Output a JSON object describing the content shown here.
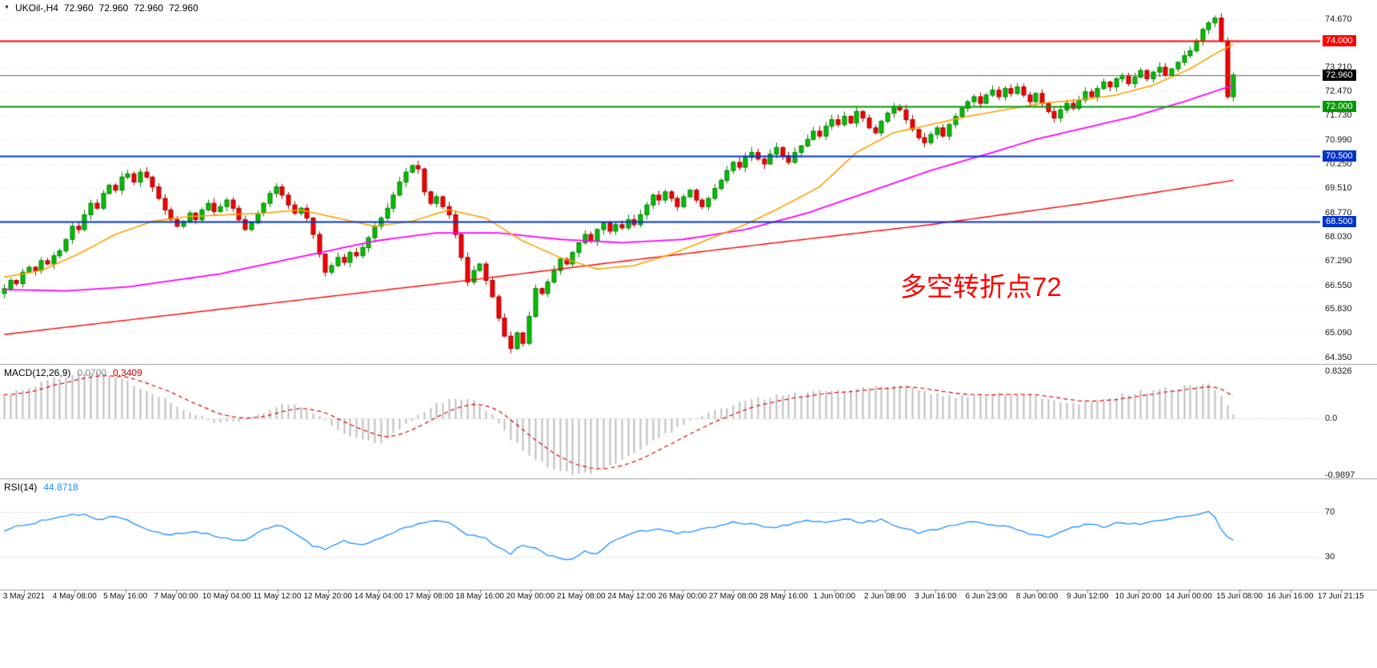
{
  "header": {
    "marker": "▼",
    "symbol_period": "UKOil-,H4",
    "open": "72.960",
    "high": "72.960",
    "low": "72.960",
    "close": "72.960"
  },
  "indicators": {
    "macd": {
      "name": "MACD(12,26,9)",
      "main": "0.0700",
      "signal": "0.3409"
    },
    "rsi": {
      "name": "RSI(14)",
      "value": "44.8718"
    }
  },
  "annotation": {
    "text": "多空转折点72",
    "color": "#ff0000"
  },
  "chart_data": [
    {
      "type": "candlestick",
      "title": "UKOil-,H4",
      "ohlc_current": {
        "open": 72.96,
        "high": 72.96,
        "low": 72.96,
        "close": 72.96
      },
      "y_range": [
        64.15,
        75.25
      ],
      "y_axis_ticks": [
        74.67,
        73.21,
        72.47,
        71.73,
        70.99,
        70.25,
        69.51,
        68.77,
        68.03,
        67.29,
        66.55,
        65.83,
        65.09,
        64.35
      ],
      "x_time_labels": [
        "3 May 2021",
        "4 May 08:00",
        "5 May 16:00",
        "7 May 00:00",
        "10 May 04:00",
        "11 May 12:00",
        "12 May 20:00",
        "14 May 04:00",
        "17 May 08:00",
        "18 May 16:00",
        "20 May 00:00",
        "21 May 08:00",
        "24 May 12:00",
        "26 May 00:00",
        "27 May 08:00",
        "28 May 16:00",
        "1 Jun 00:00",
        "2 Jun 08:00",
        "3 Jun 16:00",
        "6 Jun 23:00",
        "8 Jun 00:00",
        "9 Jun 12:00",
        "10 Jun 20:00",
        "14 Jun 00:00",
        "15 Jun 08:00",
        "16 Jun 16:00",
        "17 Jun 21:15"
      ],
      "up_color": "#00c000",
      "up_border": "#067d06",
      "down_color": "#f40000",
      "down_border": "#a60000",
      "first_open": 66.3,
      "closes": [
        66.45,
        66.7,
        66.6,
        66.95,
        67.1,
        67.0,
        67.3,
        67.2,
        67.45,
        67.6,
        67.95,
        68.35,
        68.25,
        68.7,
        69.05,
        68.9,
        69.35,
        69.6,
        69.45,
        69.85,
        69.95,
        69.7,
        70.0,
        69.85,
        69.55,
        69.2,
        68.85,
        68.55,
        68.35,
        68.5,
        68.75,
        68.55,
        68.85,
        69.05,
        68.8,
        68.95,
        69.15,
        68.9,
        68.55,
        68.25,
        68.45,
        68.75,
        69.05,
        69.35,
        69.55,
        69.3,
        69.0,
        68.75,
        68.9,
        68.6,
        68.1,
        67.5,
        66.95,
        67.15,
        67.4,
        67.25,
        67.55,
        67.45,
        67.7,
        68.0,
        68.35,
        68.6,
        68.9,
        69.3,
        69.7,
        70.0,
        70.2,
        70.1,
        69.4,
        69.05,
        69.25,
        68.95,
        68.7,
        68.1,
        67.4,
        66.65,
        67.0,
        67.2,
        66.7,
        66.2,
        65.55,
        65.0,
        64.62,
        65.1,
        64.78,
        65.6,
        66.45,
        66.3,
        66.65,
        67.0,
        67.35,
        67.2,
        67.55,
        67.85,
        68.1,
        67.9,
        68.25,
        68.45,
        68.2,
        68.4,
        68.3,
        68.55,
        68.4,
        68.7,
        69.0,
        69.3,
        69.15,
        69.4,
        69.2,
        68.95,
        69.25,
        69.45,
        69.15,
        68.95,
        69.2,
        69.5,
        69.75,
        70.05,
        70.3,
        70.15,
        70.45,
        70.6,
        70.4,
        70.25,
        70.55,
        70.75,
        70.5,
        70.3,
        70.6,
        70.8,
        71.0,
        71.25,
        71.1,
        71.4,
        71.6,
        71.45,
        71.7,
        71.5,
        71.85,
        71.65,
        71.35,
        71.2,
        71.55,
        71.8,
        72.0,
        71.9,
        71.6,
        71.3,
        71.05,
        70.9,
        71.15,
        71.35,
        71.1,
        71.45,
        71.7,
        71.95,
        72.15,
        72.3,
        72.1,
        72.35,
        72.5,
        72.3,
        72.55,
        72.4,
        72.6,
        72.35,
        72.15,
        72.4,
        72.1,
        71.85,
        71.65,
        71.9,
        72.1,
        71.95,
        72.2,
        72.45,
        72.3,
        72.55,
        72.75,
        72.6,
        72.85,
        72.95,
        72.7,
        72.9,
        73.1,
        72.85,
        73.05,
        73.2,
        72.95,
        73.15,
        73.35,
        73.55,
        73.7,
        74.0,
        74.35,
        74.55,
        74.7,
        74.0,
        72.3,
        72.96
      ],
      "moving_averages": [
        {
          "name": "slow-ma",
          "color": "#ff0000",
          "width": 1.4,
          "anchors": [
            [
              0,
              65.05
            ],
            [
              25,
              65.6
            ],
            [
              50,
              66.15
            ],
            [
              75,
              66.7
            ],
            [
              100,
              67.28
            ],
            [
              125,
              67.85
            ],
            [
              150,
              68.4
            ],
            [
              175,
              69.05
            ],
            [
              199,
              69.75
            ]
          ]
        },
        {
          "name": "mid-ma",
          "color": "#ff00ff",
          "width": 1.8,
          "anchors": [
            [
              0,
              66.42
            ],
            [
              10,
              66.38
            ],
            [
              20,
              66.5
            ],
            [
              35,
              66.9
            ],
            [
              50,
              67.5
            ],
            [
              60,
              67.9
            ],
            [
              70,
              68.15
            ],
            [
              80,
              68.15
            ],
            [
              90,
              67.95
            ],
            [
              100,
              67.85
            ],
            [
              110,
              67.95
            ],
            [
              120,
              68.25
            ],
            [
              130,
              68.75
            ],
            [
              140,
              69.4
            ],
            [
              150,
              70.05
            ],
            [
              160,
              70.6
            ],
            [
              167,
              71.0
            ],
            [
              175,
              71.35
            ],
            [
              183,
              71.7
            ],
            [
              191,
              72.15
            ],
            [
              199,
              72.65
            ]
          ]
        },
        {
          "name": "fast-ma",
          "color": "#ffa200",
          "width": 1.6,
          "anchors": [
            [
              0,
              66.8
            ],
            [
              6,
              67.0
            ],
            [
              12,
              67.5
            ],
            [
              18,
              68.1
            ],
            [
              24,
              68.5
            ],
            [
              30,
              68.65
            ],
            [
              36,
              68.7
            ],
            [
              42,
              68.75
            ],
            [
              48,
              68.85
            ],
            [
              54,
              68.6
            ],
            [
              60,
              68.35
            ],
            [
              66,
              68.5
            ],
            [
              72,
              68.85
            ],
            [
              78,
              68.6
            ],
            [
              84,
              67.9
            ],
            [
              90,
              67.4
            ],
            [
              96,
              67.05
            ],
            [
              102,
              67.15
            ],
            [
              108,
              67.5
            ],
            [
              114,
              67.95
            ],
            [
              120,
              68.4
            ],
            [
              126,
              68.95
            ],
            [
              132,
              69.55
            ],
            [
              138,
              70.6
            ],
            [
              144,
              71.2
            ],
            [
              150,
              71.45
            ],
            [
              156,
              71.7
            ],
            [
              162,
              71.9
            ],
            [
              168,
              72.1
            ],
            [
              174,
              72.2
            ],
            [
              180,
              72.35
            ],
            [
              186,
              72.65
            ],
            [
              192,
              73.15
            ],
            [
              196,
              73.6
            ],
            [
              199,
              73.9
            ]
          ]
        }
      ],
      "levels": [
        {
          "value": 74.0,
          "label": "74.000",
          "color": "#ff0000"
        },
        {
          "value": 72.0,
          "label": "72.000",
          "color": "#009900"
        },
        {
          "value": 70.5,
          "label": "70.500",
          "color": "#0033cc"
        },
        {
          "value": 68.5,
          "label": "68.500",
          "color": "#0033cc"
        }
      ],
      "current_price": {
        "value": 72.96,
        "label": "72.960",
        "line_color": "#666666",
        "badge_color": "#000000"
      },
      "annotation": {
        "text": "多空转折点72",
        "color": "#ff0000"
      }
    },
    {
      "type": "histogram+line",
      "name": "MACD(12,26,9)",
      "current_main": 0.07,
      "current_signal": 0.3409,
      "y_range": [
        -1.05,
        0.95
      ],
      "y_ticks": [
        {
          "v": 0.8326,
          "label": "0.8326"
        },
        {
          "v": 0,
          "label": "0.0"
        },
        {
          "v": -0.9897,
          "label": "-0.9897"
        }
      ],
      "histogram_color": "#bdbdbd",
      "signal_color": "#e00000",
      "signal_period": 9,
      "main_anchors": [
        [
          0,
          0.4
        ],
        [
          4,
          0.55
        ],
        [
          8,
          0.7
        ],
        [
          12,
          0.8
        ],
        [
          15,
          0.83
        ],
        [
          18,
          0.75
        ],
        [
          22,
          0.55
        ],
        [
          26,
          0.35
        ],
        [
          30,
          0.12
        ],
        [
          34,
          -0.05
        ],
        [
          38,
          -0.08
        ],
        [
          42,
          0.12
        ],
        [
          45,
          0.25
        ],
        [
          48,
          0.22
        ],
        [
          51,
          0.05
        ],
        [
          54,
          -0.2
        ],
        [
          58,
          -0.38
        ],
        [
          61,
          -0.42
        ],
        [
          64,
          -0.2
        ],
        [
          67,
          0.05
        ],
        [
          70,
          0.25
        ],
        [
          73,
          0.38
        ],
        [
          76,
          0.32
        ],
        [
          79,
          0.05
        ],
        [
          82,
          -0.35
        ],
        [
          85,
          -0.65
        ],
        [
          88,
          -0.85
        ],
        [
          91,
          -0.95
        ],
        [
          93,
          -0.99
        ],
        [
          96,
          -0.93
        ],
        [
          99,
          -0.8
        ],
        [
          102,
          -0.6
        ],
        [
          105,
          -0.4
        ],
        [
          108,
          -0.22
        ],
        [
          111,
          -0.05
        ],
        [
          114,
          0.1
        ],
        [
          118,
          0.25
        ],
        [
          122,
          0.35
        ],
        [
          126,
          0.42
        ],
        [
          130,
          0.45
        ],
        [
          134,
          0.5
        ],
        [
          138,
          0.54
        ],
        [
          142,
          0.58
        ],
        [
          146,
          0.56
        ],
        [
          150,
          0.45
        ],
        [
          154,
          0.38
        ],
        [
          158,
          0.4
        ],
        [
          162,
          0.44
        ],
        [
          166,
          0.42
        ],
        [
          170,
          0.32
        ],
        [
          174,
          0.28
        ],
        [
          178,
          0.34
        ],
        [
          182,
          0.44
        ],
        [
          186,
          0.5
        ],
        [
          190,
          0.55
        ],
        [
          193,
          0.6
        ],
        [
          195,
          0.62
        ],
        [
          197,
          0.4
        ],
        [
          199,
          0.07
        ]
      ]
    },
    {
      "type": "line",
      "name": "RSI(14)",
      "current": 44.8718,
      "y_range": [
        0,
        100
      ],
      "levels": [
        {
          "v": 70,
          "label": "70"
        },
        {
          "v": 30,
          "label": "30"
        }
      ],
      "line_color": "#1e90ff",
      "anchors": [
        [
          0,
          54
        ],
        [
          3,
          58
        ],
        [
          6,
          62
        ],
        [
          10,
          67
        ],
        [
          13,
          69
        ],
        [
          15,
          64
        ],
        [
          18,
          66
        ],
        [
          21,
          60
        ],
        [
          24,
          52
        ],
        [
          27,
          49
        ],
        [
          30,
          53
        ],
        [
          33,
          50
        ],
        [
          36,
          47
        ],
        [
          39,
          44
        ],
        [
          42,
          55
        ],
        [
          44,
          59
        ],
        [
          47,
          52
        ],
        [
          50,
          40
        ],
        [
          52,
          36
        ],
        [
          55,
          44
        ],
        [
          58,
          41
        ],
        [
          61,
          46
        ],
        [
          64,
          54
        ],
        [
          67,
          59
        ],
        [
          70,
          62
        ],
        [
          72,
          60
        ],
        [
          75,
          50
        ],
        [
          78,
          46
        ],
        [
          80,
          38
        ],
        [
          82,
          33
        ],
        [
          84,
          41
        ],
        [
          86,
          37
        ],
        [
          88,
          32
        ],
        [
          90,
          29
        ],
        [
          92,
          27
        ],
        [
          94,
          35
        ],
        [
          96,
          32
        ],
        [
          98,
          43
        ],
        [
          100,
          48
        ],
        [
          103,
          53
        ],
        [
          106,
          55
        ],
        [
          109,
          51
        ],
        [
          112,
          54
        ],
        [
          115,
          57
        ],
        [
          118,
          61
        ],
        [
          121,
          59
        ],
        [
          124,
          56
        ],
        [
          127,
          59
        ],
        [
          130,
          63
        ],
        [
          133,
          61
        ],
        [
          136,
          64
        ],
        [
          139,
          61
        ],
        [
          142,
          63
        ],
        [
          145,
          57
        ],
        [
          148,
          51
        ],
        [
          151,
          55
        ],
        [
          154,
          59
        ],
        [
          157,
          61
        ],
        [
          160,
          59
        ],
        [
          163,
          56
        ],
        [
          166,
          51
        ],
        [
          169,
          48
        ],
        [
          172,
          54
        ],
        [
          175,
          59
        ],
        [
          178,
          57
        ],
        [
          181,
          61
        ],
        [
          184,
          59
        ],
        [
          187,
          62
        ],
        [
          190,
          65
        ],
        [
          193,
          68
        ],
        [
          195,
          71
        ],
        [
          196,
          66
        ],
        [
          197,
          55
        ],
        [
          198,
          48
        ],
        [
          199,
          44.87
        ]
      ]
    }
  ]
}
